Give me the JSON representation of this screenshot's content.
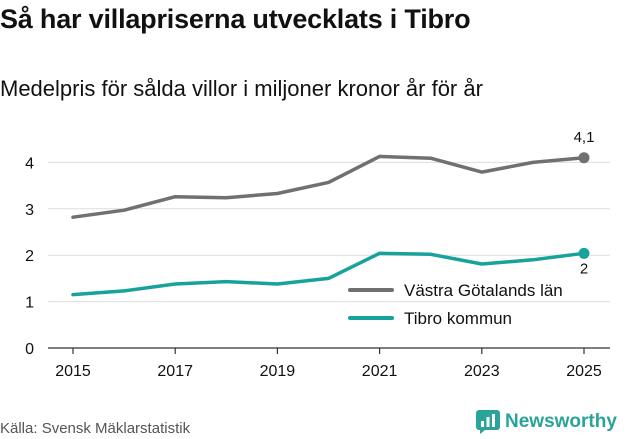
{
  "chart_data": {
    "type": "line",
    "title": "Så har villapriserna utvecklats i Tibro",
    "subtitle": "Medelpris för sålda villor i miljoner kronor år för år",
    "x": [
      2015,
      2016,
      2017,
      2018,
      2019,
      2020,
      2021,
      2022,
      2023,
      2024,
      2025
    ],
    "x_tick_labels": [
      "2015",
      "2017",
      "2019",
      "2021",
      "2023",
      "2025"
    ],
    "y_tick_labels": [
      "0",
      "1",
      "2",
      "3",
      "4"
    ],
    "ylim": [
      0,
      4.5
    ],
    "grid": true,
    "legend_position": "bottom-right",
    "series": [
      {
        "name": "Västra Götalands län",
        "color": "#707070",
        "values": [
          2.82,
          2.97,
          3.26,
          3.24,
          3.33,
          3.57,
          4.13,
          4.09,
          3.79,
          4.0,
          4.1
        ],
        "end_label": "4,1"
      },
      {
        "name": "Tibro kommun",
        "color": "#17a39c",
        "values": [
          1.15,
          1.23,
          1.38,
          1.43,
          1.38,
          1.5,
          2.04,
          2.02,
          1.81,
          1.9,
          2.04
        ],
        "end_label": "2"
      }
    ],
    "source": "Källa: Svensk Mäklarstatistik"
  },
  "brand": {
    "name": "Newsworthy",
    "icon": "newsworthy-logo-icon",
    "color": "#2aa39a"
  }
}
